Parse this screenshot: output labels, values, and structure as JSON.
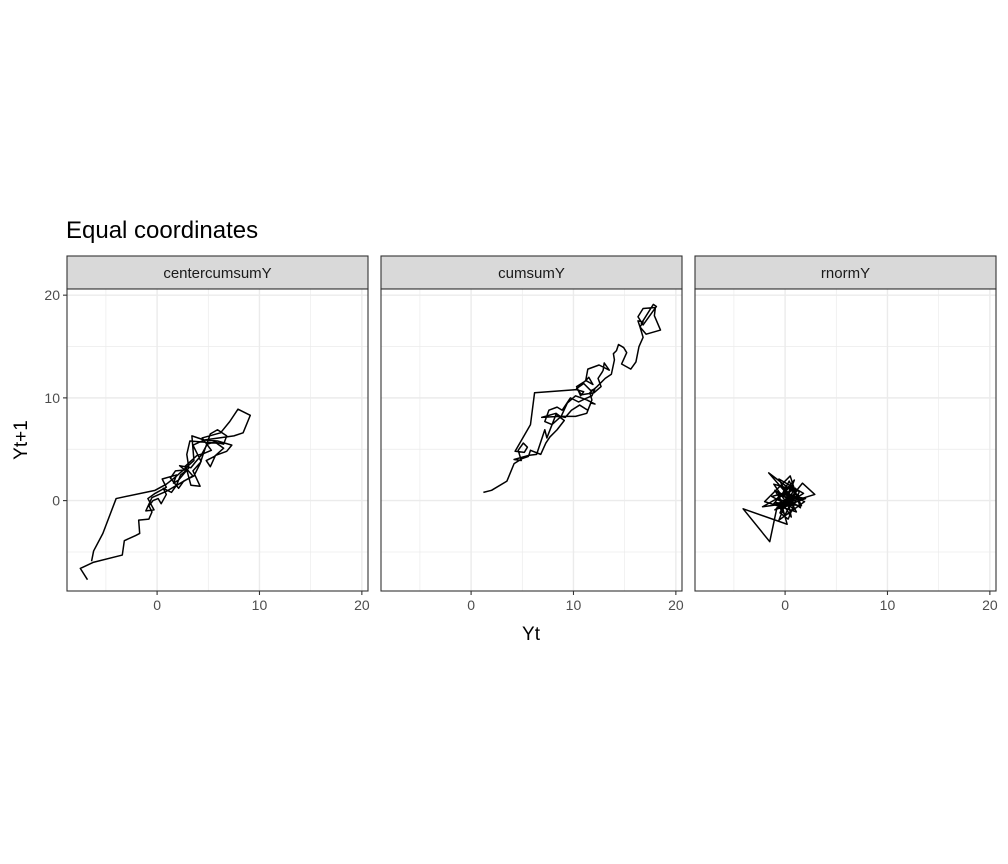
{
  "chart_data": {
    "type": "line",
    "title": "Equal coordinates",
    "xlabel": "Yt",
    "ylabel": "Yt+1",
    "xlim": [
      -8.8,
      20.6
    ],
    "ylim": [
      -8.8,
      20.6
    ],
    "x_ticks": [
      0,
      10,
      20
    ],
    "y_ticks": [
      0,
      10,
      20
    ],
    "x_minor": [
      -5,
      5,
      15
    ],
    "y_minor": [
      -5,
      5,
      15
    ],
    "grid": true,
    "panels": [
      {
        "label": "centercumsumY",
        "points": [
          [
            -6.8,
            -7.7
          ],
          [
            -7.5,
            -6.6
          ],
          [
            -6.2,
            -6.0
          ],
          [
            -3.4,
            -5.3
          ],
          [
            -3.2,
            -3.9
          ],
          [
            -2.1,
            -3.4
          ],
          [
            -1.7,
            -3.2
          ],
          [
            -1.8,
            -1.9
          ],
          [
            -0.8,
            -1.8
          ],
          [
            -0.5,
            -1.1
          ],
          [
            -0.8,
            -0.5
          ],
          [
            -0.4,
            0.0
          ],
          [
            0.1,
            0.2
          ],
          [
            0.4,
            -0.3
          ],
          [
            0.9,
            0.6
          ],
          [
            0.6,
            1.2
          ],
          [
            1.4,
            0.8
          ],
          [
            1.9,
            1.5
          ],
          [
            2.3,
            2.5
          ],
          [
            2.8,
            2.9
          ],
          [
            2.2,
            3.4
          ],
          [
            3.3,
            3.2
          ],
          [
            3.7,
            3.7
          ],
          [
            4.3,
            4.4
          ],
          [
            4.9,
            5.5
          ],
          [
            5.6,
            5.7
          ],
          [
            6.5,
            5.5
          ],
          [
            6.8,
            6.3
          ],
          [
            5.9,
            6.9
          ],
          [
            5.2,
            6.5
          ],
          [
            4.6,
            4.8
          ],
          [
            4.2,
            3.6
          ],
          [
            3.6,
            2.4
          ],
          [
            2.6,
            1.9
          ],
          [
            2.1,
            1.2
          ],
          [
            1.3,
            2.2
          ],
          [
            1.8,
            2.9
          ],
          [
            2.9,
            3.0
          ],
          [
            3.3,
            1.5
          ],
          [
            4.2,
            1.4
          ],
          [
            3.5,
            2.9
          ],
          [
            4.3,
            3.8
          ],
          [
            3.9,
            4.6
          ],
          [
            3.5,
            5.4
          ],
          [
            4.6,
            5.9
          ],
          [
            5.9,
            5.8
          ],
          [
            7.3,
            5.4
          ],
          [
            6.8,
            4.8
          ],
          [
            5.7,
            4.4
          ],
          [
            5.2,
            3.3
          ],
          [
            4.8,
            3.9
          ],
          [
            5.6,
            4.3
          ],
          [
            6.5,
            5.1
          ],
          [
            5.8,
            5.6
          ],
          [
            3.2,
            5.8
          ],
          [
            2.9,
            4.5
          ],
          [
            3.1,
            3.2
          ],
          [
            2.1,
            2.0
          ],
          [
            1.6,
            1.7
          ],
          [
            1.9,
            2.5
          ],
          [
            0.5,
            2.1
          ],
          [
            0.9,
            1.3
          ],
          [
            -0.2,
            0.7
          ],
          [
            -0.9,
            0.2
          ],
          [
            -0.3,
            -0.9
          ],
          [
            -1.1,
            -1.0
          ],
          [
            -0.5,
            0.3
          ],
          [
            0.9,
            0.9
          ],
          [
            2.1,
            1.6
          ],
          [
            3.5,
            2.4
          ],
          [
            2.7,
            3.3
          ],
          [
            3.9,
            4.4
          ],
          [
            4.6,
            4.6
          ],
          [
            5.3,
            4.9
          ],
          [
            4.4,
            6.1
          ],
          [
            6.2,
            6.6
          ],
          [
            7.1,
            7.7
          ],
          [
            7.9,
            8.9
          ],
          [
            9.1,
            8.3
          ],
          [
            8.4,
            6.6
          ],
          [
            7.5,
            6.3
          ],
          [
            4.6,
            5.9
          ],
          [
            3.4,
            6.3
          ],
          [
            3.6,
            3.9
          ],
          [
            2.7,
            3.1
          ],
          [
            1.8,
            2.3
          ],
          [
            0.9,
            1.6
          ],
          [
            -0.2,
            1.0
          ],
          [
            -4.0,
            0.2
          ],
          [
            -5.3,
            -3.2
          ],
          [
            -6.2,
            -4.9
          ],
          [
            -6.4,
            -5.9
          ]
        ]
      },
      {
        "label": "cumsumY",
        "points": [
          [
            1.2,
            0.8
          ],
          [
            2.0,
            1.0
          ],
          [
            3.5,
            1.9
          ],
          [
            4.2,
            3.6
          ],
          [
            5.0,
            4.1
          ],
          [
            5.6,
            4.3
          ],
          [
            5.8,
            4.9
          ],
          [
            6.8,
            4.5
          ],
          [
            7.3,
            5.6
          ],
          [
            7.7,
            6.2
          ],
          [
            8.4,
            6.9
          ],
          [
            9.1,
            7.8
          ],
          [
            8.3,
            8.4
          ],
          [
            7.4,
            6.1
          ],
          [
            7.2,
            6.9
          ],
          [
            6.4,
            4.5
          ],
          [
            5.6,
            4.4
          ],
          [
            4.2,
            4.0
          ],
          [
            4.9,
            3.9
          ],
          [
            4.6,
            4.9
          ],
          [
            5.1,
            5.6
          ],
          [
            5.5,
            5.2
          ],
          [
            5.2,
            4.7
          ],
          [
            4.3,
            4.8
          ],
          [
            5.8,
            7.4
          ],
          [
            6.2,
            10.5
          ],
          [
            10.3,
            10.8
          ],
          [
            11.0,
            10.6
          ],
          [
            10.7,
            10.2
          ],
          [
            10.3,
            11.1
          ],
          [
            11.1,
            11.6
          ],
          [
            11.5,
            12.0
          ],
          [
            11.9,
            11.3
          ],
          [
            11.2,
            11.7
          ],
          [
            11.4,
            12.8
          ],
          [
            12.5,
            13.2
          ],
          [
            13.5,
            12.7
          ],
          [
            13.0,
            13.4
          ],
          [
            12.9,
            12.7
          ],
          [
            12.8,
            12.5
          ],
          [
            12.4,
            11.9
          ],
          [
            12.7,
            11.1
          ],
          [
            12.0,
            10.5
          ],
          [
            10.8,
            10.3
          ],
          [
            10.3,
            10.9
          ],
          [
            11.0,
            11.4
          ],
          [
            11.7,
            10.7
          ],
          [
            12.1,
            10.9
          ],
          [
            11.8,
            10.2
          ],
          [
            11.1,
            9.9
          ],
          [
            10.5,
            9.6
          ],
          [
            9.7,
            10.0
          ],
          [
            8.9,
            8.8
          ],
          [
            8.4,
            9.1
          ],
          [
            7.6,
            8.8
          ],
          [
            7.2,
            7.7
          ],
          [
            7.9,
            7.4
          ],
          [
            8.8,
            8.2
          ],
          [
            9.4,
            9.5
          ],
          [
            10.2,
            10.2
          ],
          [
            11.3,
            9.8
          ],
          [
            12.1,
            9.4
          ],
          [
            11.7,
            9.5
          ],
          [
            11.4,
            8.8
          ],
          [
            10.6,
            9.3
          ],
          [
            9.8,
            8.8
          ],
          [
            9.2,
            8.1
          ],
          [
            8.7,
            8.2
          ],
          [
            8.3,
            8.5
          ],
          [
            6.9,
            8.1
          ],
          [
            8.6,
            8.2
          ],
          [
            10.2,
            8.2
          ],
          [
            11.3,
            8.5
          ],
          [
            11.8,
            9.8
          ],
          [
            11.6,
            10.5
          ],
          [
            12.3,
            11.1
          ],
          [
            13.1,
            11.9
          ],
          [
            13.7,
            12.3
          ],
          [
            14.0,
            13.7
          ],
          [
            13.9,
            14.3
          ],
          [
            14.2,
            14.6
          ],
          [
            14.4,
            15.2
          ],
          [
            14.9,
            14.9
          ],
          [
            15.2,
            14.4
          ],
          [
            14.7,
            13.3
          ],
          [
            15.6,
            12.8
          ],
          [
            16.1,
            13.5
          ],
          [
            16.4,
            15.0
          ],
          [
            16.8,
            15.9
          ],
          [
            16.5,
            16.9
          ],
          [
            16.3,
            17.5
          ],
          [
            16.8,
            17.4
          ],
          [
            16.5,
            16.9
          ],
          [
            17.1,
            16.2
          ],
          [
            18.5,
            16.6
          ],
          [
            17.9,
            18.0
          ],
          [
            18.0,
            18.8
          ],
          [
            16.8,
            18.7
          ],
          [
            16.3,
            17.9
          ],
          [
            16.8,
            17.1
          ],
          [
            18.1,
            18.9
          ],
          [
            17.8,
            19.1
          ],
          [
            16.6,
            17.2
          ]
        ]
      },
      {
        "label": "rnormY",
        "points": [
          [
            -0.2,
            -0.6
          ],
          [
            1.0,
            -0.4
          ],
          [
            -0.8,
            0.2
          ],
          [
            0.6,
            1.4
          ],
          [
            -0.5,
            -1.2
          ],
          [
            0.3,
            -1.8
          ],
          [
            1.4,
            0.9
          ],
          [
            -1.1,
            1.6
          ],
          [
            0.2,
            -0.3
          ],
          [
            1.8,
            0.7
          ],
          [
            -0.6,
            2.1
          ],
          [
            0.9,
            -0.8
          ],
          [
            -1.3,
            0.4
          ],
          [
            1.2,
            1.1
          ],
          [
            0.0,
            -1.4
          ],
          [
            -0.9,
            -0.2
          ],
          [
            1.6,
            -0.5
          ],
          [
            0.4,
            1.9
          ],
          [
            -0.3,
            0.6
          ],
          [
            2.0,
            0.2
          ],
          [
            -1.0,
            -0.9
          ],
          [
            0.7,
            0.3
          ],
          [
            -0.1,
            1.2
          ],
          [
            1.1,
            -1.1
          ],
          [
            -2.0,
            -0.1
          ],
          [
            0.5,
            2.4
          ],
          [
            1.5,
            -0.7
          ],
          [
            -0.7,
            0.9
          ],
          [
            0.2,
            -2.3
          ],
          [
            -4.1,
            -0.8
          ],
          [
            -1.5,
            -4.0
          ],
          [
            -0.8,
            -0.7
          ],
          [
            0.4,
            0.4
          ],
          [
            -1.6,
            2.7
          ],
          [
            1.3,
            0.5
          ],
          [
            0.0,
            -0.3
          ],
          [
            2.9,
            0.6
          ],
          [
            1.7,
            1.7
          ],
          [
            -0.4,
            -0.9
          ],
          [
            1.0,
            1.2
          ],
          [
            -2.2,
            -0.6
          ],
          [
            0.8,
            -0.2
          ],
          [
            -1.0,
            1.0
          ],
          [
            0.6,
            -1.6
          ],
          [
            0.1,
            0.8
          ],
          [
            1.9,
            -0.1
          ],
          [
            -0.6,
            -1.9
          ],
          [
            0.9,
            2.0
          ],
          [
            -1.2,
            -0.4
          ],
          [
            0.3,
            0.0
          ]
        ]
      }
    ]
  }
}
